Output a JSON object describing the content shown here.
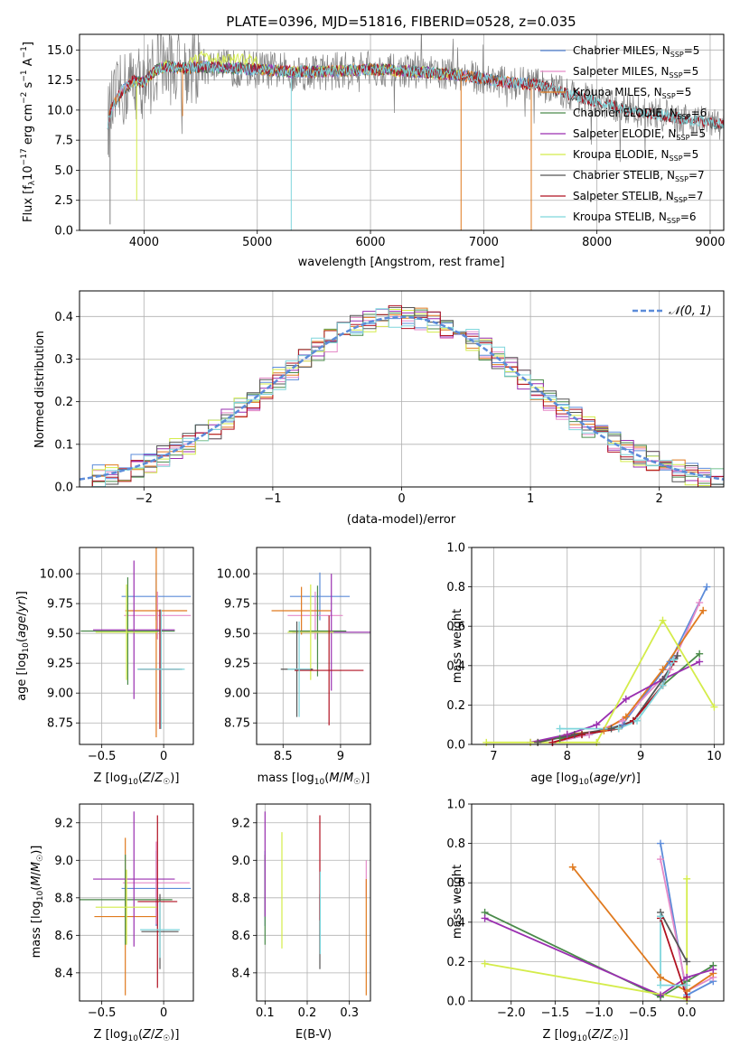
{
  "figure": {
    "title": "PLATE=0396, MJD=51816, FIBERID=0528, z=0.035"
  },
  "model_colors": {
    "Chabrier MILES": "#5b8bd9",
    "Salpeter MILES": "#e58ac8",
    "Kroupa MILES": "#e07a1f",
    "Chabrier ELODIE": "#4a8a4a",
    "Salpeter ELODIE": "#9a2fb0",
    "Kroupa ELODIE": "#d4ec4a",
    "Chabrier STELIB": "#555555",
    "Salpeter STELIB": "#b01020",
    "Kroupa STELIB": "#7fd6dc",
    "data": "#808080"
  },
  "chart_data": [
    {
      "id": "spectrum",
      "type": "line",
      "xlabel": "wavelength [Angstrom, rest frame]",
      "ylabel": "Flux [f_λ 10^-17 erg cm^-2 s^-1 A^-1]",
      "xlim": [
        3430,
        9120
      ],
      "ylim": [
        0,
        16.3
      ],
      "xticks": [
        4000,
        5000,
        6000,
        7000,
        8000,
        9000
      ],
      "yticks": [
        0.0,
        2.5,
        5.0,
        7.5,
        10.0,
        12.5,
        15.0
      ],
      "ytick_labels": [
        "0.0",
        "2.5",
        "5.0",
        "7.5",
        "10.0",
        "12.5",
        "15.0"
      ],
      "legend_position": "right",
      "legend": [
        {
          "model": "Chabrier MILES",
          "nssp": "5"
        },
        {
          "model": "Salpeter MILES",
          "nssp": "5"
        },
        {
          "model": "Kroupa MILES",
          "nssp": "5"
        },
        {
          "model": "Chabrier ELODIE",
          "nssp": "6"
        },
        {
          "model": "Salpeter ELODIE",
          "nssp": "5"
        },
        {
          "model": "Kroupa ELODIE",
          "nssp": "5"
        },
        {
          "model": "Chabrier STELIB",
          "nssp": "7"
        },
        {
          "model": "Salpeter STELIB",
          "nssp": "7"
        },
        {
          "model": "Kroupa STELIB",
          "nssp": "6"
        }
      ],
      "continuum": {
        "x": [
          3680,
          3720,
          3800,
          3900,
          4000,
          4100,
          4200,
          4300,
          4400,
          4500,
          4700,
          5000,
          5300,
          5600,
          6000,
          6400,
          6800,
          7200,
          7500,
          7800,
          8100,
          8400,
          8700,
          9000,
          9120
        ],
        "y": [
          8.9,
          10.3,
          11.5,
          12.4,
          12.3,
          13.3,
          13.7,
          13.5,
          13.5,
          13.6,
          13.5,
          13.4,
          13.2,
          13.2,
          13.4,
          13.2,
          12.9,
          12.3,
          12.1,
          11.2,
          10.4,
          9.8,
          9.4,
          8.9,
          8.8
        ]
      },
      "model_ranges": {
        "MILES": [
          3540,
          7420
        ],
        "ELODIE": [
          3900,
          6800
        ],
        "STELIB": [
          3200,
          9120
        ]
      }
    },
    {
      "id": "residual-histogram",
      "type": "bar",
      "xlabel": "(data-model)/error",
      "ylabel": "Normed distribution",
      "xlim": [
        -2.5,
        2.5
      ],
      "ylim": [
        0,
        0.46
      ],
      "xticks": [
        -2,
        -1,
        0,
        1,
        2
      ],
      "xtick_labels": [
        "−2",
        "−1",
        "0",
        "1",
        "2"
      ],
      "yticks": [
        0.0,
        0.1,
        0.2,
        0.3,
        0.4
      ],
      "ytick_labels": [
        "0.0",
        "0.1",
        "0.2",
        "0.3",
        "0.4"
      ],
      "bin_width": 0.1,
      "reference": {
        "name": "𝒩(0, 1)",
        "color": "#5b8bd9"
      }
    },
    {
      "id": "age-vs-metallicity",
      "type": "scatter",
      "xlabel": "Z [log10(Z/Z☉)]",
      "ylabel": "age [log10(age/yr)]",
      "xlim": [
        -0.68,
        0.24
      ],
      "ylim": [
        8.57,
        10.22
      ],
      "xticks": [
        -0.5,
        0.0
      ],
      "yticks": [
        8.75,
        9.0,
        9.25,
        9.5,
        9.75,
        10.0
      ],
      "ytick_labels": [
        "8.75",
        "9.00",
        "9.25",
        "9.50",
        "9.75",
        "10.00"
      ],
      "points": [
        {
          "model": "Chabrier MILES",
          "x": -0.06,
          "xerr": 0.28,
          "y": 9.81,
          "yerr": 0.2
        },
        {
          "model": "Salpeter MILES",
          "x": -0.05,
          "xerr": 0.27,
          "y": 9.65,
          "yerr": 0.2
        },
        {
          "model": "Kroupa MILES",
          "x": -0.06,
          "xerr": 0.25,
          "y": 9.69,
          "yerr": 1.06
        },
        {
          "model": "Chabrier ELODIE",
          "x": -0.29,
          "xerr": 0.38,
          "y": 9.52,
          "yerr": 0.45
        },
        {
          "model": "Salpeter ELODIE",
          "x": -0.24,
          "xerr": 0.33,
          "y": 9.53,
          "yerr": 0.58
        },
        {
          "model": "Kroupa ELODIE",
          "x": -0.3,
          "xerr": 0.25,
          "y": 9.51,
          "yerr": 0.4
        },
        {
          "model": "Chabrier STELIB",
          "x": -0.03,
          "xerr": 0.18,
          "y": 9.2,
          "yerr": 0.5
        },
        {
          "model": "Salpeter STELIB",
          "x": -0.03,
          "xerr": 0.16,
          "y": 9.2,
          "yerr": 0.5
        },
        {
          "model": "Kroupa STELIB",
          "x": -0.02,
          "xerr": 0.19,
          "y": 9.2,
          "yerr": 0.5
        }
      ]
    },
    {
      "id": "age-vs-mass",
      "type": "scatter",
      "xlabel": "mass [log10(M/M☉)]",
      "ylabel": "",
      "xlim": [
        8.27,
        9.26
      ],
      "ylim": [
        8.57,
        10.22
      ],
      "xticks": [
        8.5,
        9.0
      ],
      "yticks": [
        8.75,
        9.0,
        9.25,
        9.5,
        9.75,
        10.0
      ],
      "ytick_labels": [
        "8.75",
        "9.00",
        "9.25",
        "9.50",
        "9.75",
        "10.00"
      ],
      "points": [
        {
          "model": "Chabrier MILES",
          "x": 8.82,
          "xerr": 0.26,
          "y": 9.81,
          "yerr": 0.2
        },
        {
          "model": "Salpeter MILES",
          "x": 8.78,
          "xerr": 0.24,
          "y": 9.65,
          "yerr": 0.2
        },
        {
          "model": "Kroupa MILES",
          "x": 8.66,
          "xerr": 0.26,
          "y": 9.69,
          "yerr": 0.2
        },
        {
          "model": "Chabrier ELODIE",
          "x": 8.8,
          "xerr": 0.25,
          "y": 9.52,
          "yerr": 0.38
        },
        {
          "model": "Salpeter ELODIE",
          "x": 8.92,
          "xerr": 0.34,
          "y": 9.51,
          "yerr": 0.49
        },
        {
          "model": "Kroupa ELODIE",
          "x": 8.74,
          "xerr": 0.2,
          "y": 9.51,
          "yerr": 0.4
        },
        {
          "model": "Chabrier STELIB",
          "x": 8.62,
          "xerr": 0.14,
          "y": 9.2,
          "yerr": 0.4
        },
        {
          "model": "Salpeter STELIB",
          "x": 8.9,
          "xerr": 0.3,
          "y": 9.19,
          "yerr": 0.46
        },
        {
          "model": "Kroupa STELIB",
          "x": 8.64,
          "xerr": 0.1,
          "y": 9.2,
          "yerr": 0.4
        }
      ]
    },
    {
      "id": "mass-weight-vs-age",
      "type": "line",
      "xlabel": "age [log10(age/yr)]",
      "ylabel": "mass weight",
      "xlim": [
        6.7,
        10.13
      ],
      "ylim": [
        0,
        1.0
      ],
      "xticks": [
        7,
        8,
        9,
        10
      ],
      "yticks": [
        0.0,
        0.2,
        0.4,
        0.6,
        0.8,
        1.0
      ],
      "ytick_labels": [
        "0.0",
        "0.2",
        "0.4",
        "0.6",
        "0.8",
        "1.0"
      ],
      "series": [
        {
          "model": "Chabrier MILES",
          "x": [
            7.8,
            8.3,
            8.75,
            9.4,
            9.9
          ],
          "y": [
            0.01,
            0.05,
            0.1,
            0.42,
            0.8
          ]
        },
        {
          "model": "Salpeter MILES",
          "x": [
            7.8,
            8.3,
            8.75,
            9.4,
            9.8
          ],
          "y": [
            0.01,
            0.05,
            0.12,
            0.38,
            0.72
          ]
        },
        {
          "model": "Kroupa MILES",
          "x": [
            7.6,
            8.0,
            8.5,
            8.8,
            9.3,
            9.85
          ],
          "y": [
            0.01,
            0.05,
            0.07,
            0.14,
            0.38,
            0.68
          ]
        },
        {
          "model": "Chabrier ELODIE",
          "x": [
            7.9,
            8.2,
            8.7,
            8.9,
            9.3,
            9.8
          ],
          "y": [
            0.03,
            0.05,
            0.08,
            0.12,
            0.3,
            0.46
          ]
        },
        {
          "model": "Salpeter ELODIE",
          "x": [
            7.5,
            8.0,
            8.4,
            8.8,
            9.3,
            9.8
          ],
          "y": [
            0.01,
            0.05,
            0.1,
            0.23,
            0.33,
            0.42
          ]
        },
        {
          "model": "Kroupa ELODIE",
          "x": [
            6.9,
            7.5,
            8.4,
            9.3,
            10.0
          ],
          "y": [
            0.01,
            0.01,
            0.01,
            0.63,
            0.19
          ]
        },
        {
          "model": "Chabrier STELIB",
          "x": [
            7.6,
            8.1,
            8.6,
            8.9,
            9.3,
            9.5
          ],
          "y": [
            0.01,
            0.05,
            0.08,
            0.12,
            0.33,
            0.45
          ]
        },
        {
          "model": "Salpeter STELIB",
          "x": [
            7.8,
            8.2,
            8.7,
            8.9,
            9.3,
            9.45
          ],
          "y": [
            0.01,
            0.05,
            0.08,
            0.12,
            0.3,
            0.42
          ]
        },
        {
          "model": "Kroupa STELIB",
          "x": [
            7.9,
            8.7,
            8.95,
            9.3,
            9.45
          ],
          "y": [
            0.08,
            0.08,
            0.12,
            0.3,
            0.43
          ]
        }
      ]
    },
    {
      "id": "mass-vs-metallicity",
      "type": "scatter",
      "xlabel": "Z [log10(Z/Z☉)]",
      "ylabel": "mass [log10(M/M☉)]",
      "xlim": [
        -0.68,
        0.24
      ],
      "ylim": [
        8.25,
        9.3
      ],
      "xticks": [
        -0.5,
        0.0
      ],
      "yticks": [
        8.4,
        8.6,
        8.8,
        9.0,
        9.2
      ],
      "ytick_labels": [
        "8.4",
        "8.6",
        "8.8",
        "9.0",
        "9.2"
      ],
      "points": [
        {
          "model": "Chabrier MILES",
          "x": -0.06,
          "xerr": 0.28,
          "y": 8.85,
          "yerr": 0.2
        },
        {
          "model": "Salpeter MILES",
          "x": -0.06,
          "xerr": 0.27,
          "y": 8.88,
          "yerr": 0.22
        },
        {
          "model": "Kroupa MILES",
          "x": -0.31,
          "xerr": 0.25,
          "y": 8.7,
          "yerr": 0.42
        },
        {
          "model": "Chabrier ELODIE",
          "x": -0.31,
          "xerr": 0.38,
          "y": 8.79,
          "yerr": 0.24
        },
        {
          "model": "Salpeter ELODIE",
          "x": -0.24,
          "xerr": 0.33,
          "y": 8.9,
          "yerr": 0.36
        },
        {
          "model": "Kroupa ELODIE",
          "x": -0.3,
          "xerr": 0.25,
          "y": 8.75,
          "yerr": 0.2
        },
        {
          "model": "Chabrier STELIB",
          "x": -0.03,
          "xerr": 0.15,
          "y": 8.62,
          "yerr": 0.2
        },
        {
          "model": "Salpeter STELIB",
          "x": -0.05,
          "xerr": 0.16,
          "y": 8.78,
          "yerr": 0.46
        },
        {
          "model": "Kroupa STELIB",
          "x": -0.03,
          "xerr": 0.16,
          "y": 8.63,
          "yerr": 0.15
        }
      ]
    },
    {
      "id": "mass-vs-extinction",
      "type": "scatter",
      "xlabel": "E(B-V)",
      "ylabel": "",
      "xlim": [
        0.08,
        0.35
      ],
      "ylim": [
        8.25,
        9.3
      ],
      "xticks": [
        0.1,
        0.2,
        0.3
      ],
      "yticks": [
        8.4,
        8.6,
        8.8,
        9.0,
        9.2
      ],
      "ytick_labels": [
        "8.4",
        "8.6",
        "8.8",
        "9.0",
        "9.2"
      ],
      "points": [
        {
          "model": "Chabrier MILES",
          "x": 0.1,
          "y": 8.85,
          "yerr": 0.2
        },
        {
          "model": "Salpeter MILES",
          "x": 0.34,
          "y": 8.9,
          "yerr": 0.1
        },
        {
          "model": "Kroupa MILES",
          "x": 0.34,
          "y": 8.59,
          "yerr": 0.31
        },
        {
          "model": "Chabrier ELODIE",
          "x": 0.1,
          "y": 8.79,
          "yerr": 0.24
        },
        {
          "model": "Salpeter ELODIE",
          "x": 0.1,
          "y": 8.98,
          "yerr": 0.28
        },
        {
          "model": "Kroupa ELODIE",
          "x": 0.14,
          "y": 8.84,
          "yerr": 0.31
        },
        {
          "model": "Chabrier STELIB",
          "x": 0.23,
          "y": 8.62,
          "yerr": 0.2
        },
        {
          "model": "Salpeter STELIB",
          "x": 0.23,
          "y": 8.96,
          "yerr": 0.28
        },
        {
          "model": "Kroupa STELIB",
          "x": 0.231,
          "y": 8.72,
          "yerr": 0.22
        }
      ]
    },
    {
      "id": "mass-weight-vs-metallicity",
      "type": "line",
      "xlabel": "Z [log10(Z/Z☉)]",
      "ylabel": "mass weight",
      "xlim": [
        -2.45,
        0.42
      ],
      "ylim": [
        0,
        1.0
      ],
      "xticks": [
        -2.0,
        -1.5,
        -1.0,
        -0.5,
        0.0
      ],
      "xtick_labels": [
        "−2.0",
        "−1.5",
        "−1.0",
        "−0.5",
        "0.0"
      ],
      "yticks": [
        0.0,
        0.2,
        0.4,
        0.6,
        0.8,
        1.0
      ],
      "ytick_labels": [
        "0.0",
        "0.2",
        "0.4",
        "0.6",
        "0.8",
        "1.0"
      ],
      "series": [
        {
          "model": "Chabrier MILES",
          "x": [
            -0.3,
            0.0,
            0.3
          ],
          "y": [
            0.8,
            0.03,
            0.1
          ]
        },
        {
          "model": "Salpeter MILES",
          "x": [
            -0.3,
            0.0,
            0.3
          ],
          "y": [
            0.72,
            0.05,
            0.12
          ]
        },
        {
          "model": "Kroupa MILES",
          "x": [
            -1.3,
            -0.3,
            0.0,
            0.3
          ],
          "y": [
            0.68,
            0.12,
            0.05,
            0.14
          ]
        },
        {
          "model": "Chabrier ELODIE",
          "x": [
            -2.3,
            -0.3,
            0.0,
            0.3
          ],
          "y": [
            0.45,
            0.02,
            0.1,
            0.18
          ]
        },
        {
          "model": "Salpeter ELODIE",
          "x": [
            -2.3,
            -0.3,
            0.0,
            0.3
          ],
          "y": [
            0.42,
            0.03,
            0.12,
            0.16
          ]
        },
        {
          "model": "Kroupa ELODIE",
          "x": [
            -2.3,
            0.0,
            0.0
          ],
          "y": [
            0.19,
            0.01,
            0.62
          ]
        },
        {
          "model": "Chabrier STELIB",
          "x": [
            -0.3,
            0.0
          ],
          "y": [
            0.45,
            0.2
          ]
        },
        {
          "model": "Salpeter STELIB",
          "x": [
            -0.3,
            0.0
          ],
          "y": [
            0.42,
            0.02
          ]
        },
        {
          "model": "Kroupa STELIB",
          "x": [
            -0.3,
            -0.3,
            0.0
          ],
          "y": [
            0.43,
            0.08,
            0.08
          ]
        }
      ]
    }
  ]
}
